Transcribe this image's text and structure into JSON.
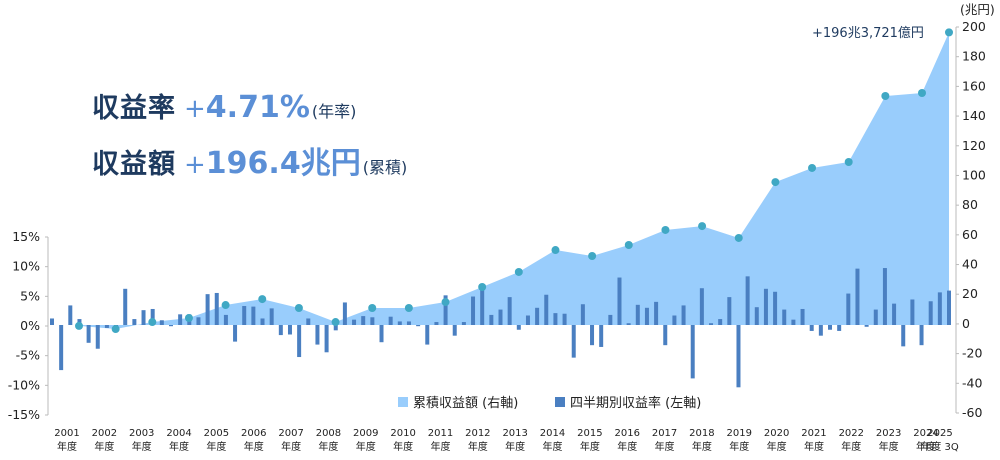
{
  "headline": {
    "rate_label": "収益率",
    "rate_plus": "+",
    "rate_value": "4.71%",
    "rate_note": "(年率)",
    "amount_label": "収益額",
    "amount_plus": "+",
    "amount_value": "196.4兆円",
    "amount_note": "(累積)"
  },
  "colors": {
    "area": "#99cdfc",
    "bar": "#4a7fc1",
    "dot": "#40a8c4",
    "headline_dark": "#1e3a5f",
    "headline_accent": "#5b8fd6"
  },
  "chart_data": {
    "type": "bar+area",
    "title": "",
    "annotation": "+196兆3,721億円",
    "left_axis": {
      "label": "",
      "ticks": [
        "15%",
        "10%",
        "5%",
        "0%",
        "-5%",
        "-10%",
        "-15%"
      ],
      "range": [
        -15,
        15
      ]
    },
    "right_axis": {
      "label": "(兆円)",
      "ticks": [
        "200",
        "180",
        "160",
        "140",
        "120",
        "100",
        "80",
        "60",
        "40",
        "20",
        "0",
        "-20",
        "-40",
        "-60"
      ],
      "range": [
        -60,
        200
      ]
    },
    "x_labels": [
      [
        "2001",
        "年度"
      ],
      [
        "2002",
        "年度"
      ],
      [
        "2003",
        "年度"
      ],
      [
        "2004",
        "年度"
      ],
      [
        "2005",
        "年度"
      ],
      [
        "2006",
        "年度"
      ],
      [
        "2007",
        "年度"
      ],
      [
        "2008",
        "年度"
      ],
      [
        "2009",
        "年度"
      ],
      [
        "2010",
        "年度"
      ],
      [
        "2011",
        "年度"
      ],
      [
        "2012",
        "年度"
      ],
      [
        "2013",
        "年度"
      ],
      [
        "2014",
        "年度"
      ],
      [
        "2015",
        "年度"
      ],
      [
        "2016",
        "年度"
      ],
      [
        "2017",
        "年度"
      ],
      [
        "2018",
        "年度"
      ],
      [
        "2019",
        "年度"
      ],
      [
        "2020",
        "年度"
      ],
      [
        "2021",
        "年度"
      ],
      [
        "2022",
        "年度"
      ],
      [
        "2023",
        "年度"
      ],
      [
        "2024",
        "年度"
      ],
      [
        "2025",
        "年度 3Q"
      ]
    ],
    "legend": [
      {
        "label": "累積収益額 (右軸)",
        "type": "area"
      },
      {
        "label": "四半期別収益率 (左軸)",
        "type": "bar"
      }
    ],
    "series": [
      {
        "name": "累積収益額 (右軸)",
        "unit": "兆円",
        "categories": [
          "2001",
          "2002",
          "2003",
          "2004",
          "2005",
          "2006",
          "2007",
          "2008",
          "2009",
          "2010",
          "2011",
          "2012",
          "2013",
          "2014",
          "2015",
          "2016",
          "2017",
          "2018",
          "2019",
          "2020",
          "2021",
          "2022",
          "2023",
          "2024",
          "2025 3Q"
        ],
        "values": [
          -0.6,
          -2.7,
          2.0,
          4.7,
          13.4,
          17.4,
          11.4,
          2.0,
          11.4,
          11.4,
          15.4,
          25.5,
          35.6,
          50.3,
          46.3,
          53.7,
          63.8,
          66.4,
          58.4,
          95.9,
          105.4,
          109.4,
          153.7,
          155.7,
          196.4
        ]
      },
      {
        "name": "四半期別収益率 (左軸)",
        "unit": "%",
        "values": [
          1.1,
          -7.6,
          3.3,
          1.0,
          -3.0,
          -4.0,
          -0.5,
          -0.8,
          6.1,
          1.0,
          2.5,
          2.7,
          0.8,
          -0.2,
          1.8,
          1.8,
          1.3,
          5.2,
          5.4,
          1.7,
          -2.8,
          3.2,
          3.1,
          1.1,
          2.8,
          -1.7,
          -1.6,
          -5.4,
          1.1,
          -3.3,
          -4.6,
          -0.9,
          3.8,
          0.9,
          1.5,
          1.3,
          -2.9,
          1.4,
          0.6,
          0.6,
          -0.2,
          -3.3,
          0.5,
          5.0,
          -1.8,
          0.5,
          4.8,
          5.9,
          1.7,
          2.6,
          4.7,
          -0.8,
          1.6,
          2.9,
          5.1,
          2.0,
          1.9,
          -5.5,
          3.5,
          -3.4,
          -3.7,
          1.7,
          8.0,
          0.3,
          3.4,
          2.9,
          3.9,
          -3.4,
          1.6,
          3.3,
          -9.0,
          6.2,
          0.3,
          1.0,
          4.7,
          -10.5,
          8.2,
          3.0,
          6.1,
          5.6,
          2.6,
          0.9,
          2.7,
          -1.0,
          -1.8,
          -0.8,
          -1.0,
          5.3,
          9.5,
          -0.3,
          2.6,
          9.6,
          3.6,
          -3.6,
          4.3,
          -3.4,
          4.0,
          5.5,
          5.8
        ]
      }
    ]
  }
}
